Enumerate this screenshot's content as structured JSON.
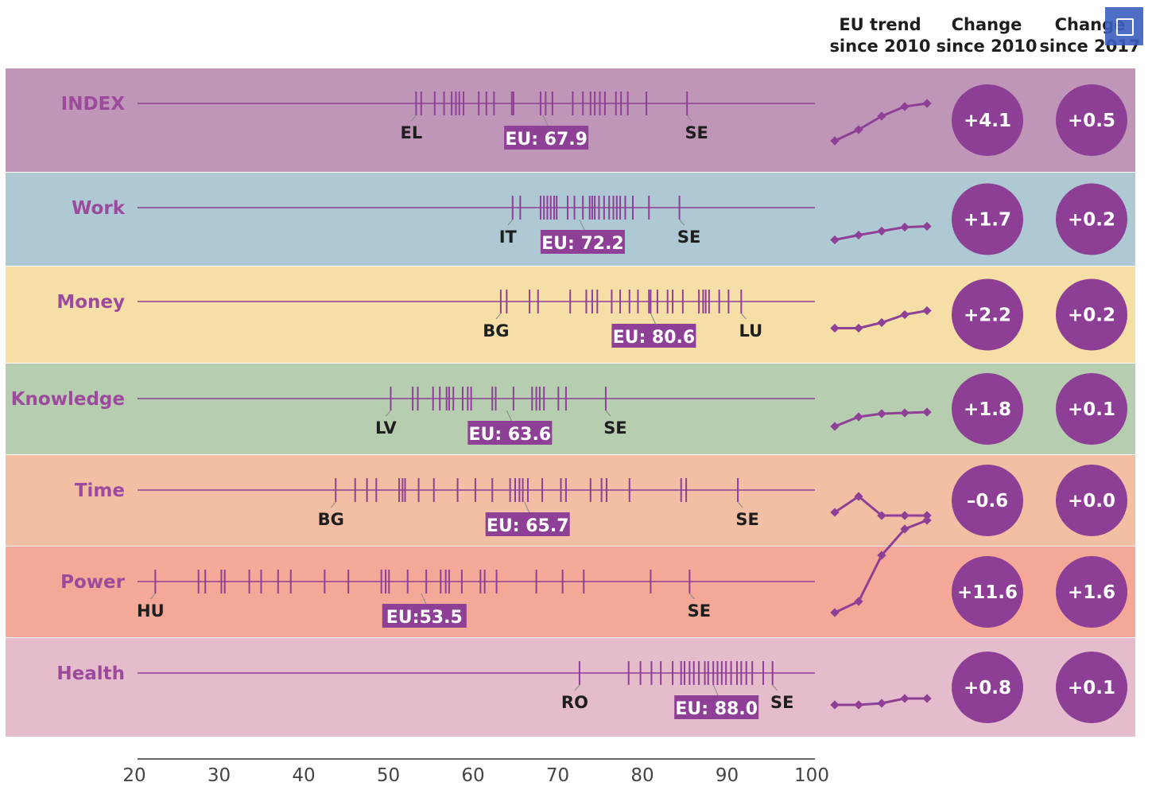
{
  "headers": {
    "trend": [
      "EU trend",
      "since 2010"
    ],
    "change2010": [
      "Change",
      "since 2010"
    ],
    "change2017": [
      "Change",
      "since 2017"
    ]
  },
  "colors": {
    "accent": "#8e3f96",
    "label": "#9b4a9c",
    "bubble": "#8d3f95",
    "bands": [
      "#c096b8",
      "#aec9d3",
      "#f6dfa7",
      "#b6cdb0",
      "#f2bfa4",
      "#f4a898",
      "#e4bccb"
    ]
  },
  "chart_data": {
    "type": "strip",
    "x_axis": {
      "min": 20,
      "max": 100,
      "ticks": [
        20,
        30,
        40,
        50,
        60,
        70,
        80,
        90,
        100
      ]
    },
    "rows": [
      {
        "name": "INDEX",
        "eu_label": "EU: 67.9",
        "eu": 67.9,
        "low": {
          "label": "EL",
          "value": 52.9
        },
        "high": {
          "label": "SE",
          "value": 84.9
        },
        "values": [
          52.9,
          53.5,
          55.1,
          56.2,
          57.1,
          57.6,
          58.0,
          58.5,
          60.3,
          61.2,
          62.1,
          64.2,
          64.4,
          67.6,
          68.2,
          69.0,
          71.4,
          72.6,
          73.5,
          74.0,
          74.6,
          75.2,
          76.5,
          77.1,
          77.9,
          80.1,
          84.9
        ],
        "trend": [
          -0.4,
          1.0,
          2.7,
          3.9,
          4.3
        ],
        "change_2010": "+4.1",
        "change_2017": "+0.5"
      },
      {
        "name": "Work",
        "eu_label": "EU: 72.2",
        "eu": 72.2,
        "low": {
          "label": "IT",
          "value": 64.3
        },
        "high": {
          "label": "SE",
          "value": 84.0
        },
        "values": [
          64.3,
          65.2,
          67.6,
          68.0,
          68.4,
          68.8,
          69.2,
          69.5,
          70.8,
          71.6,
          72.6,
          73.4,
          73.7,
          74.0,
          74.5,
          75.1,
          75.7,
          76.2,
          76.6,
          77.0,
          77.6,
          78.5,
          80.4,
          84.0
        ],
        "trend": [
          -0.4,
          0.2,
          0.7,
          1.2,
          1.3
        ],
        "change_2010": "+1.7",
        "change_2017": "+0.2"
      },
      {
        "name": "Money",
        "eu_label": "EU: 80.6",
        "eu": 80.6,
        "low": {
          "label": "BG",
          "value": 62.9
        },
        "high": {
          "label": "LU",
          "value": 91.3
        },
        "values": [
          62.9,
          63.6,
          66.3,
          67.3,
          71.1,
          73.0,
          73.7,
          74.3,
          76.0,
          77.0,
          78.1,
          79.1,
          80.4,
          80.6,
          81.4,
          82.6,
          83.2,
          84.4,
          86.3,
          86.8,
          87.1,
          87.5,
          88.7,
          89.8,
          91.3
        ],
        "trend": [
          0.5,
          0.5,
          1.2,
          2.2,
          2.7
        ],
        "change_2010": "+2.2",
        "change_2017": "+0.2"
      },
      {
        "name": "Knowledge",
        "eu_label": "EU: 63.6",
        "eu": 63.6,
        "low": {
          "label": "LV",
          "value": 49.9
        },
        "high": {
          "label": "SE",
          "value": 75.3
        },
        "values": [
          49.9,
          52.5,
          53.1,
          54.9,
          55.7,
          56.5,
          56.8,
          57.3,
          58.4,
          59.0,
          59.4,
          61.9,
          62.3,
          64.4,
          66.6,
          67.1,
          67.5,
          68.0,
          69.7,
          70.6,
          75.3
        ],
        "trend": [
          0.0,
          1.2,
          1.6,
          1.7,
          1.8
        ],
        "change_2010": "+1.8",
        "change_2017": "+0.1"
      },
      {
        "name": "Time",
        "eu_label": "EU: 65.7",
        "eu": 65.7,
        "low": {
          "label": "BG",
          "value": 43.4
        },
        "high": {
          "label": "SE",
          "value": 90.9
        },
        "values": [
          43.4,
          45.7,
          47.1,
          48.2,
          50.9,
          51.3,
          51.6,
          53.2,
          55.0,
          57.8,
          59.9,
          61.9,
          64.0,
          64.6,
          65.1,
          65.5,
          66.1,
          67.8,
          70.0,
          70.6,
          73.5,
          74.8,
          75.4,
          78.1,
          84.2,
          84.8,
          90.9
        ],
        "trend": [
          0.7,
          2.7,
          0.3,
          0.3,
          0.3
        ],
        "change_2010": "-0.6",
        "change_2017": "+0.0"
      },
      {
        "name": "Power",
        "eu_label": "EU:53.5",
        "eu": 53.5,
        "low": {
          "label": "HU",
          "value": 22.1
        },
        "high": {
          "label": "SE",
          "value": 85.2
        },
        "values": [
          22.1,
          27.2,
          28.0,
          29.9,
          30.3,
          33.2,
          34.6,
          36.6,
          38.1,
          42.1,
          44.9,
          48.8,
          49.3,
          49.7,
          51.9,
          54.1,
          55.8,
          56.4,
          56.8,
          58.3,
          60.5,
          61.0,
          62.4,
          67.1,
          70.2,
          72.7,
          80.6,
          85.2
        ],
        "trend": [
          -0.4,
          1.0,
          6.8,
          10.1,
          11.2
        ],
        "change_2010": "+11.6",
        "change_2017": "+1.6"
      },
      {
        "name": "Health",
        "eu_label": "EU: 88.0",
        "eu": 88.0,
        "low": {
          "label": "RO",
          "value": 72.2
        },
        "high": {
          "label": "SE",
          "value": 95.0
        },
        "values": [
          72.2,
          78.0,
          79.4,
          80.7,
          81.8,
          83.2,
          84.2,
          84.6,
          85.2,
          85.7,
          86.3,
          87.0,
          87.4,
          88.0,
          88.5,
          89.0,
          89.5,
          90.1,
          90.8,
          91.3,
          91.9,
          92.6,
          93.9,
          95.0
        ],
        "trend": [
          0.0,
          0.0,
          0.2,
          0.8,
          0.8
        ],
        "change_2010": "+0.8",
        "change_2017": "+0.1"
      }
    ]
  }
}
